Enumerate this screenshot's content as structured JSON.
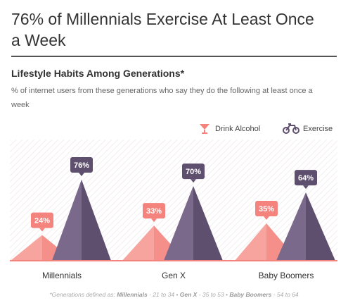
{
  "chart_data": {
    "type": "triangle",
    "title": "76% of Millennials Exercise At Least Once a Week",
    "subheading": "Lifestyle Habits Among Generations*",
    "subtitle": "% of internet users from these generations who say they do the following at least once a week",
    "categories": [
      "Millennials",
      "Gen X",
      "Baby Boomers"
    ],
    "series": [
      {
        "name": "Drink Alcohol",
        "color": "#f4837d",
        "values": [
          24,
          33,
          35
        ],
        "value_labels": [
          "24%",
          "33%",
          "35%"
        ]
      },
      {
        "name": "Exercise",
        "color": "#5e4f6e",
        "values": [
          76,
          70,
          64
        ],
        "value_labels": [
          "76%",
          "70%",
          "64%"
        ]
      }
    ],
    "footnote": {
      "prefix": "*Generations defined as:",
      "ranges": [
        "- 21 to 34",
        "- 35 to 53",
        "- 54 to 64"
      ]
    }
  }
}
